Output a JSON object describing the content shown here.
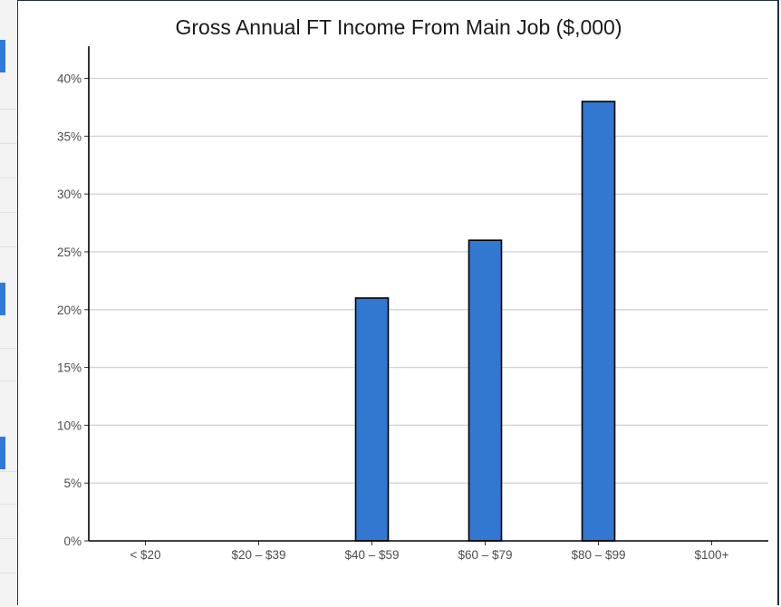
{
  "chart_data": {
    "type": "bar",
    "title": "Gross Annual FT Income From Main Job ($,000)",
    "xlabel": "",
    "ylabel": "",
    "categories": [
      "< $20",
      "$20 – $39",
      "$40 – $59",
      "$60 – $79",
      "$80 – $99",
      "$100+"
    ],
    "values": [
      0,
      0,
      21,
      26,
      38,
      0
    ],
    "ylim": [
      0,
      42
    ],
    "yticks": [
      0,
      5,
      10,
      15,
      20,
      25,
      30,
      35,
      40
    ],
    "ytick_labels": [
      "0%",
      "5%",
      "10%",
      "15%",
      "20%",
      "25%",
      "30%",
      "35%",
      "40%"
    ],
    "grid": "horizontal",
    "legend": "none",
    "bar_color": "#3277d0",
    "bar_edge_color": "#000000",
    "grid_color": "#d4d4d4"
  },
  "sidebar_accent": "#2f79d9"
}
